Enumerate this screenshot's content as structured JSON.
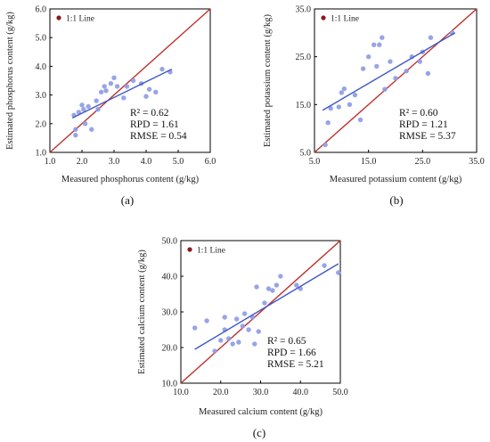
{
  "colors": {
    "point": "#8c9ae6",
    "fit_line": "#3f57c7",
    "one_to_one": "#c0302b",
    "legend_marker": "#8b1a1a",
    "axis": "#000000"
  },
  "chart_data": [
    {
      "type": "scatter",
      "panel_label": "(a)",
      "xlabel": "Measured phosphorus content (g/kg)",
      "ylabel": "Estimated phosphorus content (g/kg)",
      "xlim": [
        1.0,
        6.0
      ],
      "ylim": [
        1.0,
        6.0
      ],
      "xticks": [
        "1.0",
        "2.0",
        "3.0",
        "4.0",
        "5.0",
        "6.0"
      ],
      "yticks": [
        "1.0",
        "2.0",
        "3.0",
        "4.0",
        "5.0",
        "6.0"
      ],
      "legend": {
        "label": "1:1 Line",
        "position": "top-left"
      },
      "stats": {
        "r2": "R² = 0.62",
        "rpd": "RPD = 1.61",
        "rmse": "RMSE = 0.54"
      },
      "fit_line": {
        "x": [
          1.7,
          4.8
        ],
        "y": [
          2.2,
          3.9
        ]
      },
      "points": [
        [
          1.8,
          1.6
        ],
        [
          1.75,
          2.3
        ],
        [
          1.8,
          1.8
        ],
        [
          1.9,
          2.4
        ],
        [
          2.0,
          2.65
        ],
        [
          2.05,
          2.5
        ],
        [
          2.1,
          2.0
        ],
        [
          2.2,
          2.6
        ],
        [
          2.3,
          1.8
        ],
        [
          2.45,
          2.8
        ],
        [
          2.5,
          2.5
        ],
        [
          2.6,
          3.1
        ],
        [
          2.7,
          3.3
        ],
        [
          2.75,
          3.15
        ],
        [
          2.9,
          3.4
        ],
        [
          3.0,
          3.6
        ],
        [
          3.1,
          3.3
        ],
        [
          3.3,
          2.9
        ],
        [
          3.4,
          3.3
        ],
        [
          3.6,
          3.5
        ],
        [
          3.85,
          3.4
        ],
        [
          4.0,
          2.95
        ],
        [
          4.1,
          3.2
        ],
        [
          4.3,
          3.1
        ],
        [
          4.5,
          3.9
        ],
        [
          4.75,
          3.8
        ]
      ]
    },
    {
      "type": "scatter",
      "panel_label": "(b)",
      "xlabel": "Measured potassium content (g/kg)",
      "ylabel": "Estimated potassium content (g/kg)",
      "xlim": [
        5.0,
        35.0
      ],
      "ylim": [
        5.0,
        35.0
      ],
      "xticks": [
        "5.0",
        "15.0",
        "25.0",
        "35.0"
      ],
      "yticks": [
        "5.0",
        "15.0",
        "25.0",
        "35.0"
      ],
      "legend": {
        "label": "1:1 Line",
        "position": "top-left"
      },
      "stats": {
        "r2": "R² = 0.60",
        "rpd": "RPD = 1.21",
        "rmse": "RMSE = 5.37"
      },
      "fit_line": {
        "x": [
          6.5,
          31.0
        ],
        "y": [
          13.8,
          30.0
        ]
      },
      "points": [
        [
          7.0,
          6.6
        ],
        [
          7.5,
          11.2
        ],
        [
          8.0,
          14.2
        ],
        [
          9.5,
          14.5
        ],
        [
          10.0,
          17.5
        ],
        [
          10.5,
          18.3
        ],
        [
          11.5,
          15.0
        ],
        [
          12.5,
          17.0
        ],
        [
          13.5,
          11.8
        ],
        [
          14.0,
          22.5
        ],
        [
          15.0,
          25.0
        ],
        [
          16.0,
          27.5
        ],
        [
          16.5,
          23.0
        ],
        [
          17.0,
          27.5
        ],
        [
          17.5,
          29.0
        ],
        [
          18.0,
          18.2
        ],
        [
          19.0,
          24.0
        ],
        [
          20.0,
          20.5
        ],
        [
          22.0,
          22.0
        ],
        [
          23.0,
          25.0
        ],
        [
          24.5,
          24.0
        ],
        [
          25.0,
          26.0
        ],
        [
          26.0,
          21.5
        ],
        [
          26.5,
          29.0
        ],
        [
          30.5,
          30.0
        ]
      ]
    },
    {
      "type": "scatter",
      "panel_label": "(c)",
      "xlabel": "Measured calcium content (g/kg)",
      "ylabel": "Estimated calcium content (g/kg)",
      "xlim": [
        10.0,
        50.0
      ],
      "ylim": [
        10.0,
        50.0
      ],
      "xticks": [
        "10.0",
        "20.0",
        "30.0",
        "40.0",
        "50.0"
      ],
      "yticks": [
        "10.0",
        "20.0",
        "30.0",
        "40.0",
        "50.0"
      ],
      "legend": {
        "label": "1:1 Line",
        "position": "top-left"
      },
      "stats": {
        "r2": "R² = 0.65",
        "rpd": "RPD = 1.66",
        "rmse": "RMSE = 5.21"
      },
      "fit_line": {
        "x": [
          13.5,
          49.5
        ],
        "y": [
          19.5,
          43.5
        ]
      },
      "points": [
        [
          13.5,
          25.5
        ],
        [
          16.5,
          27.5
        ],
        [
          18.5,
          19.0
        ],
        [
          20.0,
          22.0
        ],
        [
          21.0,
          28.5
        ],
        [
          21.0,
          25.0
        ],
        [
          22.0,
          22.5
        ],
        [
          23.0,
          21.0
        ],
        [
          24.0,
          28.0
        ],
        [
          24.5,
          21.5
        ],
        [
          25.5,
          26.0
        ],
        [
          26.0,
          29.5
        ],
        [
          27.0,
          25.0
        ],
        [
          28.0,
          28.5
        ],
        [
          28.5,
          21.0
        ],
        [
          29.0,
          37.0
        ],
        [
          29.5,
          24.5
        ],
        [
          31.0,
          32.5
        ],
        [
          32.0,
          36.5
        ],
        [
          33.0,
          36.0
        ],
        [
          34.0,
          37.5
        ],
        [
          35.0,
          40.0
        ],
        [
          39.0,
          37.5
        ],
        [
          40.0,
          36.5
        ],
        [
          46.0,
          43.0
        ],
        [
          49.5,
          41.0
        ]
      ]
    }
  ]
}
